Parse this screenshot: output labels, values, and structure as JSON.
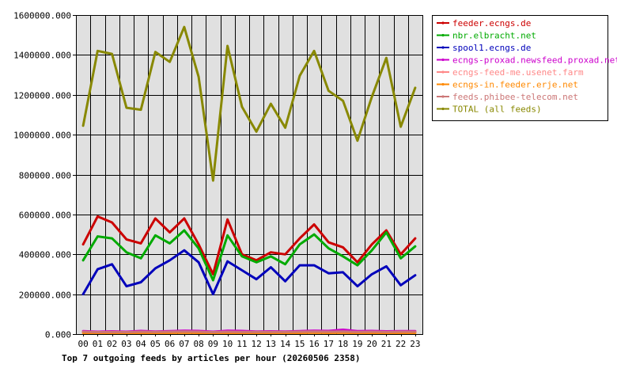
{
  "chart_data": {
    "type": "line",
    "title": "Top 7 outgoing feeds by articles per hour (20260506 2358)",
    "x": [
      "00",
      "01",
      "02",
      "03",
      "04",
      "05",
      "06",
      "07",
      "08",
      "09",
      "10",
      "11",
      "12",
      "13",
      "14",
      "15",
      "16",
      "17",
      "18",
      "19",
      "20",
      "21",
      "22",
      "23"
    ],
    "y_ticks": [
      "0.000",
      "200000.000",
      "400000.000",
      "600000.000",
      "800000.000",
      "1000000.000",
      "1200000.000",
      "1400000.000",
      "1600000.000"
    ],
    "ylim": [
      0,
      1600000
    ],
    "grid": true,
    "legend_position": "top-right",
    "background": "#e0e0e0",
    "series": [
      {
        "name": "feeder.ecngs.de",
        "color": "#cc0000",
        "values": [
          450000,
          590000,
          560000,
          475000,
          455000,
          580000,
          510000,
          580000,
          450000,
          300000,
          575000,
          400000,
          370000,
          410000,
          400000,
          480000,
          550000,
          460000,
          435000,
          360000,
          450000,
          520000,
          400000,
          480000
        ]
      },
      {
        "name": "nbr.elbracht.net",
        "color": "#00aa00",
        "values": [
          370000,
          490000,
          480000,
          410000,
          380000,
          495000,
          455000,
          520000,
          430000,
          270000,
          495000,
          390000,
          360000,
          390000,
          350000,
          450000,
          500000,
          430000,
          390000,
          345000,
          420000,
          510000,
          380000,
          440000
        ]
      },
      {
        "name": "spool1.ecngs.de",
        "color": "#0000bb",
        "values": [
          200000,
          325000,
          350000,
          240000,
          260000,
          330000,
          370000,
          420000,
          360000,
          200000,
          365000,
          320000,
          275000,
          335000,
          265000,
          345000,
          345000,
          305000,
          310000,
          240000,
          300000,
          340000,
          245000,
          295000
        ]
      },
      {
        "name": "ecngs-proxad.newsfeed.proxad.net",
        "color": "#cc00cc",
        "values": [
          15000,
          12000,
          14000,
          12000,
          16000,
          13000,
          15000,
          17000,
          16000,
          12000,
          17000,
          16000,
          13000,
          14000,
          13000,
          15000,
          17000,
          16000,
          22000,
          15000,
          16000,
          14000,
          15000,
          15000
        ]
      },
      {
        "name": "ecngs-feed-me.usenet.farm",
        "color": "#ff8888",
        "values": [
          10000,
          8000,
          9000,
          9000,
          10000,
          9000,
          10000,
          11000,
          10000,
          8000,
          10000,
          9000,
          9000,
          9000,
          9000,
          10000,
          11000,
          10000,
          11000,
          9000,
          10000,
          9000,
          10000,
          10000
        ]
      },
      {
        "name": "ecngs-in.feeder.erje.net",
        "color": "#ff8800",
        "values": [
          6000,
          5000,
          6000,
          5000,
          6000,
          6000,
          6000,
          7000,
          6000,
          5000,
          6000,
          6000,
          5000,
          6000,
          5000,
          6000,
          7000,
          6000,
          7000,
          5000,
          6000,
          6000,
          6000,
          6000
        ]
      },
      {
        "name": "feeds.phibee-telecom.net",
        "color": "#cc7777",
        "values": [
          12000,
          10000,
          11000,
          10000,
          12000,
          11000,
          12000,
          13000,
          12000,
          10000,
          12000,
          11000,
          11000,
          11000,
          11000,
          12000,
          13000,
          12000,
          13000,
          11000,
          12000,
          11000,
          12000,
          12000
        ]
      },
      {
        "name": "TOTAL (all feeds)",
        "color": "#888800",
        "values": [
          1045000,
          1420000,
          1405000,
          1135000,
          1125000,
          1415000,
          1365000,
          1540000,
          1290000,
          770000,
          1445000,
          1140000,
          1015000,
          1155000,
          1035000,
          1295000,
          1420000,
          1220000,
          1170000,
          970000,
          1190000,
          1385000,
          1040000,
          1235000
        ]
      }
    ]
  }
}
